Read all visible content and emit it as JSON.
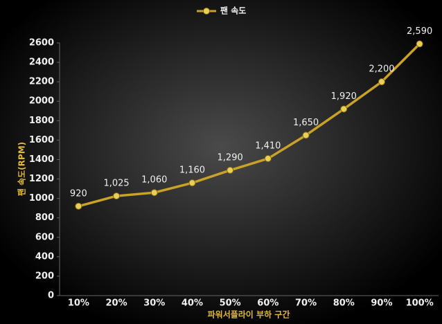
{
  "chart_data": {
    "type": "line",
    "series_name": "팬 속도",
    "categories": [
      "10%",
      "20%",
      "30%",
      "40%",
      "50%",
      "60%",
      "70%",
      "80%",
      "90%",
      "100%"
    ],
    "values": [
      920,
      1025,
      1060,
      1160,
      1290,
      1410,
      1650,
      1920,
      2200,
      2590
    ],
    "value_labels": [
      "920",
      "1,025",
      "1,060",
      "1,160",
      "1,290",
      "1,410",
      "1,650",
      "1,920",
      "2,200",
      "2,590"
    ],
    "color": "#c9a227",
    "ylabel": "팬 속도(RPM)",
    "xlabel": "파워서플라이 부하 구간",
    "ylim": [
      0,
      2600
    ],
    "yticks": [
      0,
      200,
      400,
      600,
      800,
      1000,
      1200,
      1400,
      1600,
      1800,
      2000,
      2200,
      2400,
      2600
    ],
    "grid": false,
    "legend": "top"
  }
}
